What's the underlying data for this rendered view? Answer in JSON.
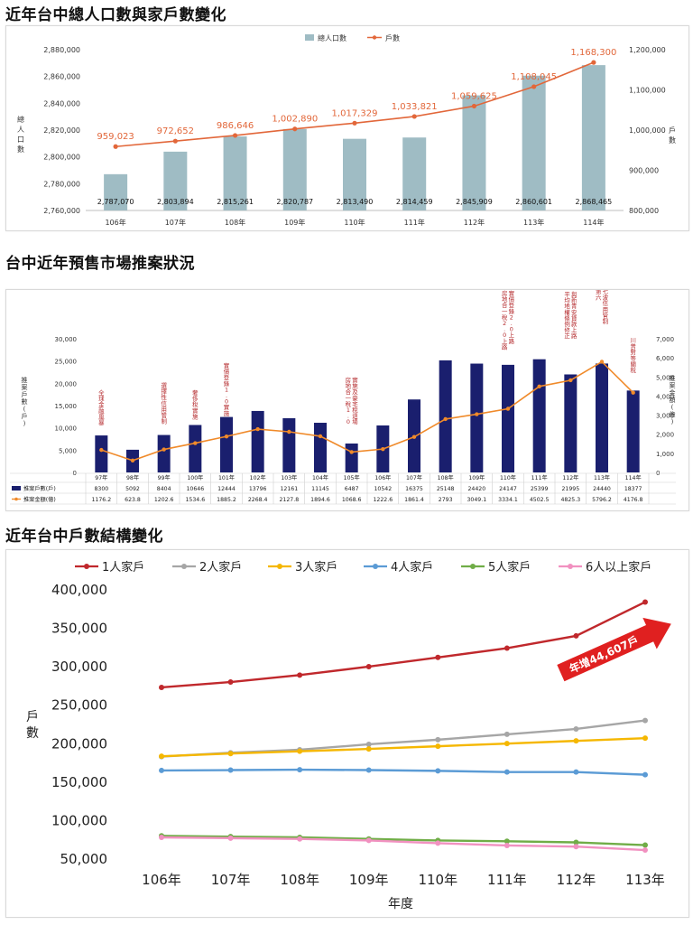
{
  "titles": {
    "s1": "近年台中總人口數與家戶數變化",
    "s2": "台中近年預售市場推案狀況",
    "s3": "近年台中戶數結構變化"
  },
  "chart_data": [
    {
      "type": "bar",
      "title": "",
      "categories": [
        "106年",
        "107年",
        "108年",
        "109年",
        "110年",
        "111年",
        "112年",
        "113年",
        "114年"
      ],
      "series": [
        {
          "name": "總人口數",
          "kind": "bar",
          "axis": "left",
          "color": "#9fbcc4",
          "values": [
            2787070,
            2803894,
            2815261,
            2820787,
            2813490,
            2814459,
            2845909,
            2860601,
            2868465
          ],
          "labels": [
            "2,787,070",
            "2,803,894",
            "2,815,261",
            "2,820,787",
            "2,813,490",
            "2,814,459",
            "2,845,909",
            "2,860,601",
            "2,868,465"
          ]
        },
        {
          "name": "戶數",
          "kind": "line",
          "axis": "right",
          "color": "#e2673a",
          "values": [
            959023,
            972652,
            986646,
            1002890,
            1017329,
            1033821,
            1059625,
            1108045,
            1168300
          ],
          "labels": [
            "959,023",
            "972,652",
            "986,646",
            "1,002,890",
            "1,017,329",
            "1,033,821",
            "1,059,625",
            "1,108,045",
            "1,168,300"
          ]
        }
      ],
      "ylabel": "總人口數",
      "y2label": "戶數",
      "ylim": [
        2760000,
        2880000
      ],
      "yticks": [
        "2,760,000",
        "2,780,000",
        "2,800,000",
        "2,820,000",
        "2,840,000",
        "2,860,000",
        "2,880,000"
      ],
      "y2lim": [
        800000,
        1200000
      ],
      "y2ticks": [
        "800,000",
        "900,000",
        "1,000,000",
        "1,100,000",
        "1,200,000"
      ],
      "legend": "top-center",
      "grid": false
    },
    {
      "type": "bar",
      "title": "",
      "categories": [
        "97年",
        "98年",
        "99年",
        "100年",
        "101年",
        "102年",
        "103年",
        "104年",
        "105年",
        "106年",
        "107年",
        "108年",
        "109年",
        "110年",
        "111年",
        "112年",
        "113年",
        "114年"
      ],
      "series": [
        {
          "name": "推案戶數(戶)",
          "kind": "bar",
          "axis": "left",
          "color": "#1a1f6e",
          "values": [
            8300,
            5092,
            8404,
            10646,
            12444,
            13796,
            12161,
            11145,
            6487,
            10542,
            16375,
            25148,
            24420,
            24147,
            25399,
            21995,
            24440,
            18377
          ],
          "labels": [
            "8300",
            "5092",
            "8404",
            "10646",
            "12444",
            "13796",
            "12161",
            "11145",
            "6487",
            "10542",
            "16375",
            "25148",
            "24420",
            "24147",
            "25399",
            "21995",
            "24440",
            "18377"
          ]
        },
        {
          "name": "推案金額(億)",
          "kind": "line",
          "axis": "right",
          "color": "#f08a2a",
          "values": [
            1176.2,
            623.8,
            1202.6,
            1534.6,
            1885.2,
            2268.4,
            2127.8,
            1894.6,
            1068.6,
            1222.6,
            1861.4,
            2793,
            3049.1,
            3334.1,
            4502.5,
            4825.3,
            5796.2,
            4176.8
          ],
          "labels": [
            "1176.2",
            "623.8",
            "1202.6",
            "1534.6",
            "1885.2",
            "2268.4",
            "2127.8",
            "1894.6",
            "1068.6",
            "1222.6",
            "1861.4",
            "2793",
            "3049.1",
            "3334.1",
            "4502.5",
            "4825.3",
            "5796.2",
            "4176.8"
          ]
        }
      ],
      "ylabel": "推案戶數(戶)",
      "y2label": "推案金額(億)",
      "ylim": [
        0,
        30000
      ],
      "yticks": [
        "0",
        "5,000",
        "10,000",
        "15,000",
        "20,000",
        "25,000",
        "30,000"
      ],
      "y2lim": [
        0,
        7000
      ],
      "y2ticks": [
        "0",
        "1,000",
        "2,000",
        "3,000",
        "4,000",
        "5,000",
        "6,000",
        "7,000"
      ],
      "annotations": [
        {
          "category": "97年",
          "text": "全球金融風暴"
        },
        {
          "category": "99年",
          "text": "選擇性信用管制"
        },
        {
          "category": "100年",
          "text": "奢侈稅實施"
        },
        {
          "category": "101年",
          "text": "實價登錄1.0實施"
        },
        {
          "category": "105年",
          "text": "房地合一稅1.0實施及豪宅稅退場"
        },
        {
          "category": "110年",
          "text": "房地合一稅2.0上路、實價登錄2.0上路"
        },
        {
          "category": "112年",
          "text": "平均地權條例修正與新青安貸款上路"
        },
        {
          "category": "113年",
          "text": "第六、七波信用管制"
        },
        {
          "category": "114年",
          "text": "川普對等關稅"
        }
      ],
      "legend": "table-bottom",
      "grid": false
    },
    {
      "type": "line",
      "title": "",
      "categories": [
        "106年",
        "107年",
        "108年",
        "109年",
        "110年",
        "111年",
        "112年",
        "113年"
      ],
      "series": [
        {
          "name": "1人家戶",
          "color": "#c0282c",
          "values": [
            272000,
            279000,
            288000,
            299000,
            311000,
            323000,
            339000,
            383000
          ]
        },
        {
          "name": "2人家戶",
          "color": "#a6a6a6",
          "values": [
            182000,
            187000,
            191000,
            198000,
            204000,
            211000,
            218000,
            229000
          ]
        },
        {
          "name": "3人家戶",
          "color": "#f5b700",
          "values": [
            182500,
            186000,
            189000,
            192000,
            195500,
            199000,
            202500,
            206000
          ]
        },
        {
          "name": "4人家戶",
          "color": "#5b9bd5",
          "values": [
            164000,
            164500,
            165000,
            164500,
            163500,
            162000,
            162000,
            158500
          ]
        },
        {
          "name": "5人家戶",
          "color": "#70ad47",
          "values": [
            79000,
            78000,
            77000,
            75000,
            73000,
            72000,
            70500,
            67000
          ]
        },
        {
          "name": "6人以上家戶",
          "color": "#f191c0",
          "values": [
            77000,
            76000,
            75000,
            73000,
            69500,
            66500,
            65000,
            60500
          ]
        }
      ],
      "ylabel": "戶數",
      "xlabel": "年度",
      "ylim": [
        50000,
        400000
      ],
      "yticks": [
        "50,000",
        "100,000",
        "150,000",
        "200,000",
        "250,000",
        "300,000",
        "350,000",
        "400,000"
      ],
      "callout": "年增44,607戶",
      "legend": "top",
      "grid": false
    }
  ]
}
